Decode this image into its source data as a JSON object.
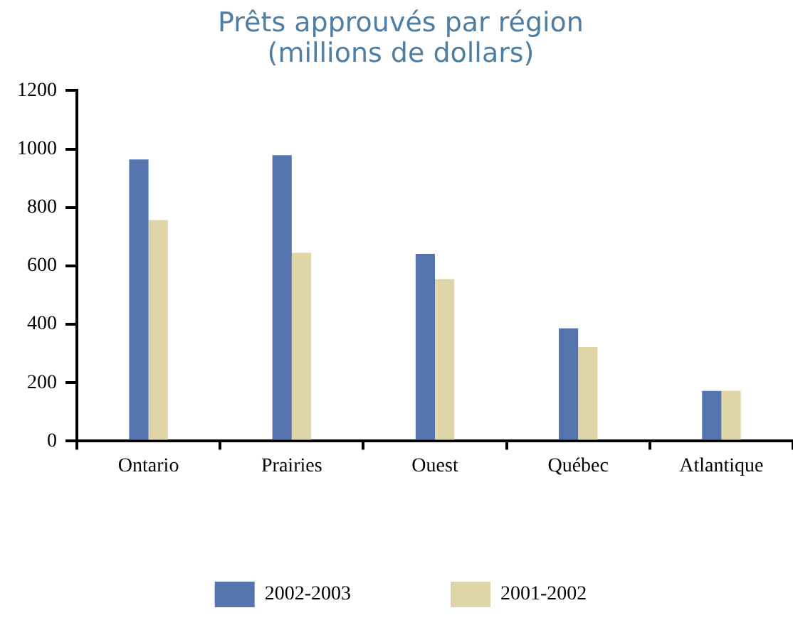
{
  "chart_data": {
    "type": "bar",
    "title": "Prêts approuvés par région\n(millions de dollars)",
    "categories": [
      "Ontario",
      "Prairies",
      "Ouest",
      "Québec",
      "Atlantique"
    ],
    "series": [
      {
        "name": "2002-2003",
        "color": "#5574ae",
        "values": [
          964,
          979,
          641,
          386,
          172
        ]
      },
      {
        "name": "2001-2002",
        "color": "#e0d5a8",
        "values": [
          757,
          645,
          555,
          322,
          172
        ]
      }
    ],
    "ylim": [
      0,
      1200
    ],
    "yticks": [
      0,
      200,
      400,
      600,
      800,
      1000,
      1200
    ],
    "grid": false,
    "legend": "bottom"
  }
}
